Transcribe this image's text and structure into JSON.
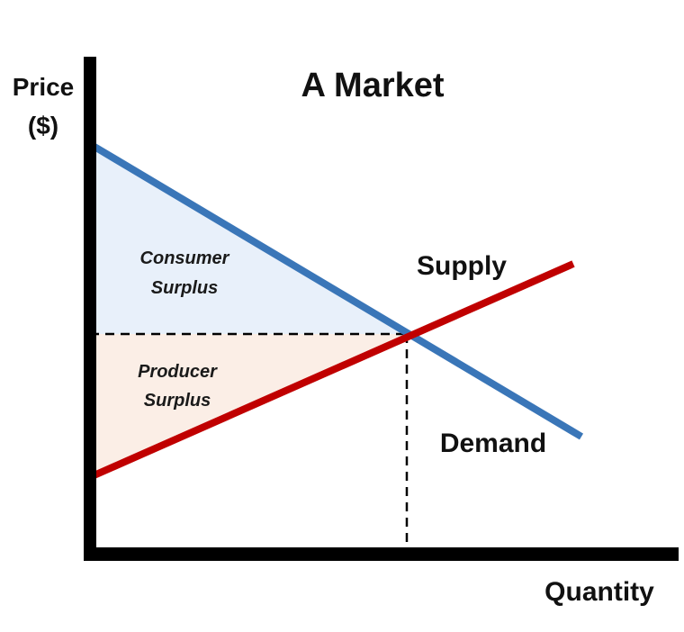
{
  "title": "A Market",
  "y_axis_label": [
    "Price",
    "($)"
  ],
  "x_axis_label": "Quantity",
  "curves": {
    "supply": {
      "label": "Supply",
      "color": "#c00000"
    },
    "demand": {
      "label": "Demand",
      "color": "#3a76b8"
    }
  },
  "regions": {
    "consumer_surplus": {
      "label": [
        "Consumer",
        "Surplus"
      ],
      "fill": "#e8f0fa"
    },
    "producer_surplus": {
      "label": [
        "Producer",
        "Surplus"
      ],
      "fill": "#fbeee6"
    }
  },
  "axis_color": "#000000",
  "guide_line_style": "dashed"
}
